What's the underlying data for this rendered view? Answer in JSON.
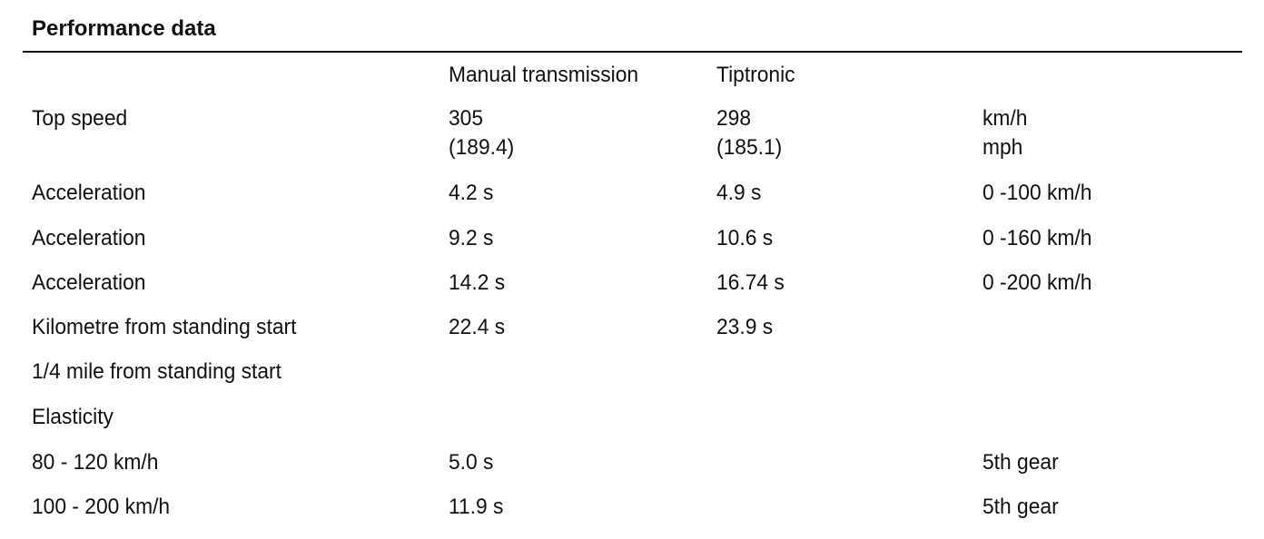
{
  "header": {
    "title": "Performance data"
  },
  "table": {
    "columns": {
      "manual": "Manual transmission",
      "tiptronic": "Tiptronic"
    },
    "rows": [
      {
        "label": "Top speed",
        "manual": [
          "305",
          "(189.4)"
        ],
        "tiptronic": [
          "298",
          "(185.1)"
        ],
        "unit": [
          "km/h",
          "mph"
        ]
      },
      {
        "label": "Acceleration",
        "manual": "4.2 s",
        "tiptronic": "4.9 s",
        "unit": "0 -100 km/h"
      },
      {
        "label": "Acceleration",
        "manual": "9.2 s",
        "tiptronic": "10.6 s",
        "unit": "0 -160 km/h"
      },
      {
        "label": "Acceleration",
        "manual": "14.2 s",
        "tiptronic": "16.74 s",
        "unit": "0 -200 km/h"
      },
      {
        "label": "Kilometre from standing start",
        "manual": "22.4 s",
        "tiptronic": "23.9 s"
      },
      {
        "label": "1/4 mile from standing start"
      },
      {
        "label": "Elasticity"
      },
      {
        "label": "80 - 120 km/h",
        "manual": "5.0 s",
        "unit": "5th gear"
      },
      {
        "label": "100 - 200 km/h",
        "manual": "11.9 s",
        "unit": "5th gear"
      }
    ]
  }
}
